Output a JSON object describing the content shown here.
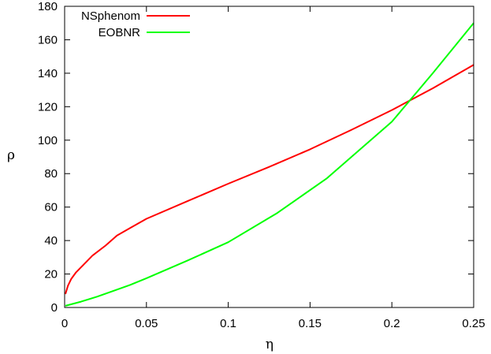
{
  "chart_data": {
    "type": "line",
    "title": "",
    "xlabel": "η",
    "ylabel": "ρ",
    "xlim": [
      0,
      0.25
    ],
    "ylim": [
      0,
      180
    ],
    "xticks": [
      0,
      0.05,
      0.1,
      0.15,
      0.2,
      0.25
    ],
    "xtick_labels": [
      "0",
      "0.05",
      "0.1",
      "0.15",
      "0.2",
      "0.25"
    ],
    "yticks": [
      0,
      20,
      40,
      60,
      80,
      100,
      120,
      140,
      160,
      180
    ],
    "ytick_labels": [
      "0",
      "20",
      "40",
      "60",
      "80",
      "100",
      "120",
      "140",
      "160",
      "180"
    ],
    "grid": false,
    "legend_position": "top-left",
    "series": [
      {
        "name": "NSphenom",
        "color": "#ff0000",
        "points": [
          [
            0.0005,
            8
          ],
          [
            0.002,
            13
          ],
          [
            0.004,
            17
          ],
          [
            0.007,
            21
          ],
          [
            0.012,
            26
          ],
          [
            0.017,
            31
          ],
          [
            0.025,
            37
          ],
          [
            0.032,
            43
          ],
          [
            0.04,
            47.5
          ],
          [
            0.05,
            53
          ],
          [
            0.075,
            63.5
          ],
          [
            0.1,
            74
          ],
          [
            0.125,
            84
          ],
          [
            0.15,
            94.5
          ],
          [
            0.175,
            106
          ],
          [
            0.2,
            118
          ],
          [
            0.225,
            131
          ],
          [
            0.25,
            145
          ]
        ]
      },
      {
        "name": "EOBNR",
        "color": "#00ff00",
        "points": [
          [
            0.0005,
            1
          ],
          [
            0.01,
            3.5
          ],
          [
            0.02,
            6.5
          ],
          [
            0.03,
            10
          ],
          [
            0.04,
            13.5
          ],
          [
            0.05,
            17.5
          ],
          [
            0.075,
            28
          ],
          [
            0.1,
            39
          ],
          [
            0.13,
            56.5
          ],
          [
            0.16,
            77
          ],
          [
            0.2,
            111
          ],
          [
            0.225,
            140
          ],
          [
            0.25,
            170
          ]
        ]
      }
    ]
  }
}
